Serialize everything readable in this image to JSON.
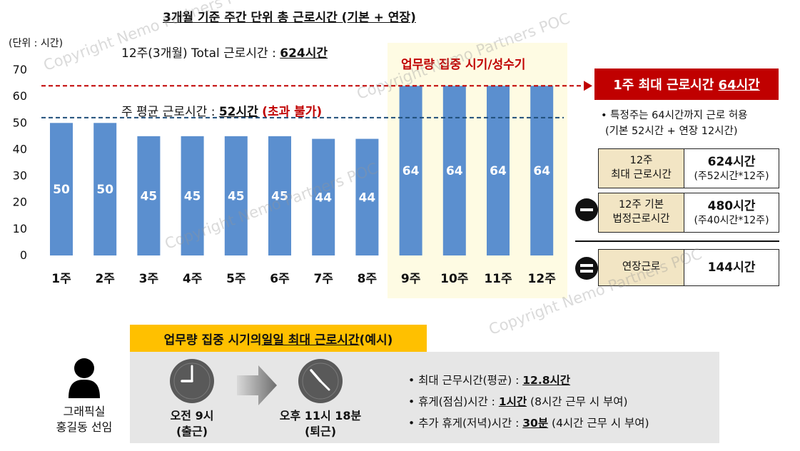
{
  "title": "3개월 기준 주간 단위 총 근로시간 (기본 + 연장)",
  "unit_label": "(단위 : 시간)",
  "total_line": {
    "prefix": "12주(3개월) Total 근로시간 : ",
    "value": "624시간"
  },
  "avg_line": {
    "prefix": "주 평균 근로시간 : ",
    "value": "52시간",
    "note": "(초과 불가)"
  },
  "peak_label": "업무량 집중 시기/성수기",
  "chart_data": {
    "type": "bar",
    "categories": [
      "1주",
      "2주",
      "3주",
      "4주",
      "5주",
      "6주",
      "7주",
      "8주",
      "9주",
      "10주",
      "11주",
      "12주"
    ],
    "values": [
      50,
      50,
      45,
      45,
      45,
      45,
      44,
      44,
      64,
      64,
      64,
      64
    ],
    "ylim": [
      0,
      70
    ],
    "yticks": [
      0,
      10,
      20,
      30,
      40,
      50,
      60,
      70
    ],
    "reference_lines": [
      {
        "value": 52,
        "style": "dashed",
        "color": "#1f4e79"
      },
      {
        "value": 64,
        "style": "dashed",
        "color": "#c00000"
      }
    ],
    "highlight_categories": [
      "9주",
      "10주",
      "11주",
      "12주"
    ],
    "bar_color": "#5b8fcf"
  },
  "max_box": {
    "prefix": "1주 최대 근로시간 ",
    "value": "64시간"
  },
  "notes": [
    "• 특정주는 64시간까지 근로 허용",
    "(기본 52시간 + 연장 12시간)"
  ],
  "table": [
    {
      "key_line1": "12주",
      "key_line2": "최대 근로시간",
      "value": "624시간",
      "sub": "(주52시간*12주)"
    },
    {
      "key_line1": "12주 기본",
      "key_line2": "법정근로시간",
      "value": "480시간",
      "sub": "(주40시간*12주)"
    },
    {
      "key_line1": "연장근로",
      "key_line2": "",
      "value": "144시간",
      "sub": ""
    }
  ],
  "example": {
    "header_prefix": "업무량 집중 시기의 ",
    "header_emph": "일일 최대 근로시간",
    "header_suffix": "(예시)",
    "person_line1": "그래픽실",
    "person_line2": "홍길동 선임",
    "start": {
      "time": "오전 9시",
      "label": "(출근)"
    },
    "end": {
      "time": "오후 11시 18분",
      "label": "(퇴근)"
    },
    "bullets": [
      {
        "prefix": "• 최대 근무시간(평균) : ",
        "value": "12.8시간",
        "suffix": ""
      },
      {
        "prefix": "• 휴게(점심)시간 : ",
        "value": "1시간",
        "suffix": " (8시간 근무 시 부여)"
      },
      {
        "prefix": "• 추가 휴게(저녁)시간 : ",
        "value": "30분",
        "suffix": " (4시간 근무 시 부여)"
      }
    ]
  },
  "watermark": "Copyright Nemo Partners POC",
  "colors": {
    "accent_red": "#c00000",
    "bar": "#5b8fcf",
    "avg_line": "#1f4e79",
    "highlight_bg": "#fefbe3",
    "example_header": "#ffc000",
    "table_key_bg": "#f2e5c4"
  }
}
